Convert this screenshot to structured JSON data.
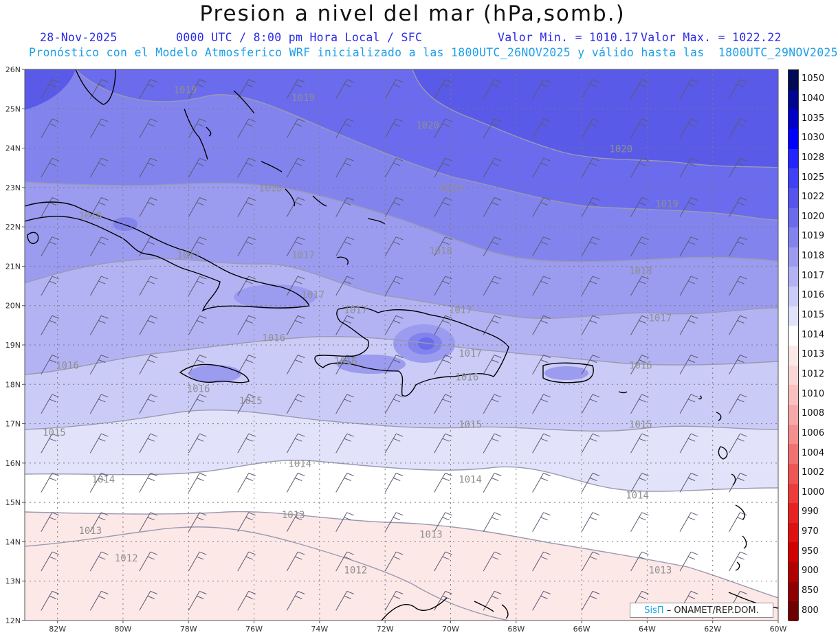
{
  "header": {
    "title": "Presion a nivel del mar (hPa,somb.)",
    "date": "28-Nov-2025",
    "time": "0000 UTC / 8:00 pm Hora Local / SFC",
    "valor_min": "Valor Min. = 1010.17",
    "valor_max": "Valor Max. = 1022.22",
    "forecast": "Pronóstico con el Modelo Atmosferico WRF inicializado a las 1800UTC_26NOV2025 y válido hasta las  1800UTC_29NOV2025"
  },
  "map": {
    "lat_range": [
      12,
      26
    ],
    "lon_range": [
      -83,
      -60
    ],
    "lat_labels": [
      "12N",
      "13N",
      "14N",
      "15N",
      "16N",
      "17N",
      "18N",
      "19N",
      "20N",
      "21N",
      "22N",
      "23N",
      "24N",
      "25N",
      "26N"
    ],
    "lon_labels": [
      "82W",
      "80W",
      "78W",
      "76W",
      "74W",
      "72W",
      "70W",
      "68W",
      "66W",
      "64W",
      "62W",
      "60W"
    ],
    "isobar_labels": [
      {
        "text": "1020",
        "lon": -70.7,
        "lat": 24.5
      },
      {
        "text": "1020",
        "lon": -64.8,
        "lat": 23.9
      },
      {
        "text": "1019",
        "lon": -74.5,
        "lat": 25.2
      },
      {
        "text": "1019",
        "lon": -78.1,
        "lat": 25.4
      },
      {
        "text": "1019",
        "lon": -70.0,
        "lat": 22.9
      },
      {
        "text": "1019",
        "lon": -63.4,
        "lat": 22.5
      },
      {
        "text": "1018",
        "lon": -75.5,
        "lat": 22.9
      },
      {
        "text": "1018",
        "lon": -81.0,
        "lat": 22.2
      },
      {
        "text": "1018",
        "lon": -70.3,
        "lat": 21.3
      },
      {
        "text": "1018",
        "lon": -64.2,
        "lat": 20.8
      },
      {
        "text": "1017",
        "lon": -78.0,
        "lat": 21.2
      },
      {
        "text": "1017",
        "lon": -74.5,
        "lat": 21.2
      },
      {
        "text": "1017",
        "lon": -74.2,
        "lat": 20.2
      },
      {
        "text": "1017",
        "lon": -72.9,
        "lat": 19.8
      },
      {
        "text": "1017",
        "lon": -69.7,
        "lat": 19.8
      },
      {
        "text": "1017",
        "lon": -63.6,
        "lat": 19.6
      },
      {
        "text": "1017",
        "lon": -69.4,
        "lat": 18.7
      },
      {
        "text": "1016",
        "lon": -75.4,
        "lat": 19.1
      },
      {
        "text": "1016",
        "lon": -81.7,
        "lat": 18.4
      },
      {
        "text": "1016",
        "lon": -73.2,
        "lat": 18.5
      },
      {
        "text": "1016",
        "lon": -69.5,
        "lat": 18.1
      },
      {
        "text": "1016",
        "lon": -64.2,
        "lat": 18.4
      },
      {
        "text": "1016",
        "lon": -77.7,
        "lat": 17.8
      },
      {
        "text": "1015",
        "lon": -76.1,
        "lat": 17.5
      },
      {
        "text": "1015",
        "lon": -82.1,
        "lat": 16.7
      },
      {
        "text": "1015",
        "lon": -69.4,
        "lat": 16.9
      },
      {
        "text": "1015",
        "lon": -64.2,
        "lat": 16.9
      },
      {
        "text": "1014",
        "lon": -74.6,
        "lat": 15.9
      },
      {
        "text": "1014",
        "lon": -80.6,
        "lat": 15.5
      },
      {
        "text": "1014",
        "lon": -69.4,
        "lat": 15.5
      },
      {
        "text": "1014",
        "lon": -64.3,
        "lat": 15.1
      },
      {
        "text": "1013",
        "lon": -81.0,
        "lat": 14.2
      },
      {
        "text": "1013",
        "lon": -74.8,
        "lat": 14.6
      },
      {
        "text": "1013",
        "lon": -70.6,
        "lat": 14.1
      },
      {
        "text": "1013",
        "lon": -63.6,
        "lat": 13.2
      },
      {
        "text": "1012",
        "lon": -79.9,
        "lat": 13.5
      },
      {
        "text": "1012",
        "lon": -72.9,
        "lat": 13.2
      }
    ]
  },
  "colorbar": [
    {
      "value": "1050",
      "color": "#000a55"
    },
    {
      "value": "1040",
      "color": "#00068f"
    },
    {
      "value": "1035",
      "color": "#0000c8"
    },
    {
      "value": "1030",
      "color": "#0000ff"
    },
    {
      "value": "1028",
      "color": "#2424ff"
    },
    {
      "value": "1025",
      "color": "#4040f4"
    },
    {
      "value": "1022",
      "color": "#5555ee"
    },
    {
      "value": "1020",
      "color": "#6b6bee"
    },
    {
      "value": "1019",
      "color": "#8383ee"
    },
    {
      "value": "1018",
      "color": "#9b9bf0"
    },
    {
      "value": "1017",
      "color": "#b3b3f4"
    },
    {
      "value": "1016",
      "color": "#cbcbf7"
    },
    {
      "value": "1015",
      "color": "#e2e2fa"
    },
    {
      "value": "1014",
      "color": "#ffffff"
    },
    {
      "value": "1013",
      "color": "#fde8e8"
    },
    {
      "value": "1012",
      "color": "#fbd6d6"
    },
    {
      "value": "1010",
      "color": "#f9c0c0"
    },
    {
      "value": "1008",
      "color": "#f7a9a9"
    },
    {
      "value": "1006",
      "color": "#f58f8f"
    },
    {
      "value": "1004",
      "color": "#f27272"
    },
    {
      "value": "1002",
      "color": "#ef5555"
    },
    {
      "value": "1000",
      "color": "#ec3c3c"
    },
    {
      "value": "990",
      "color": "#e82222"
    },
    {
      "value": "970",
      "color": "#e01010"
    },
    {
      "value": "950",
      "color": "#d00000"
    },
    {
      "value": "900",
      "color": "#b00000"
    },
    {
      "value": "850",
      "color": "#900000"
    },
    {
      "value": "800",
      "color": "#6e0000"
    }
  ],
  "credit": {
    "brand": "SisΠ",
    "text": "– ONAMET/REP.DOM."
  }
}
